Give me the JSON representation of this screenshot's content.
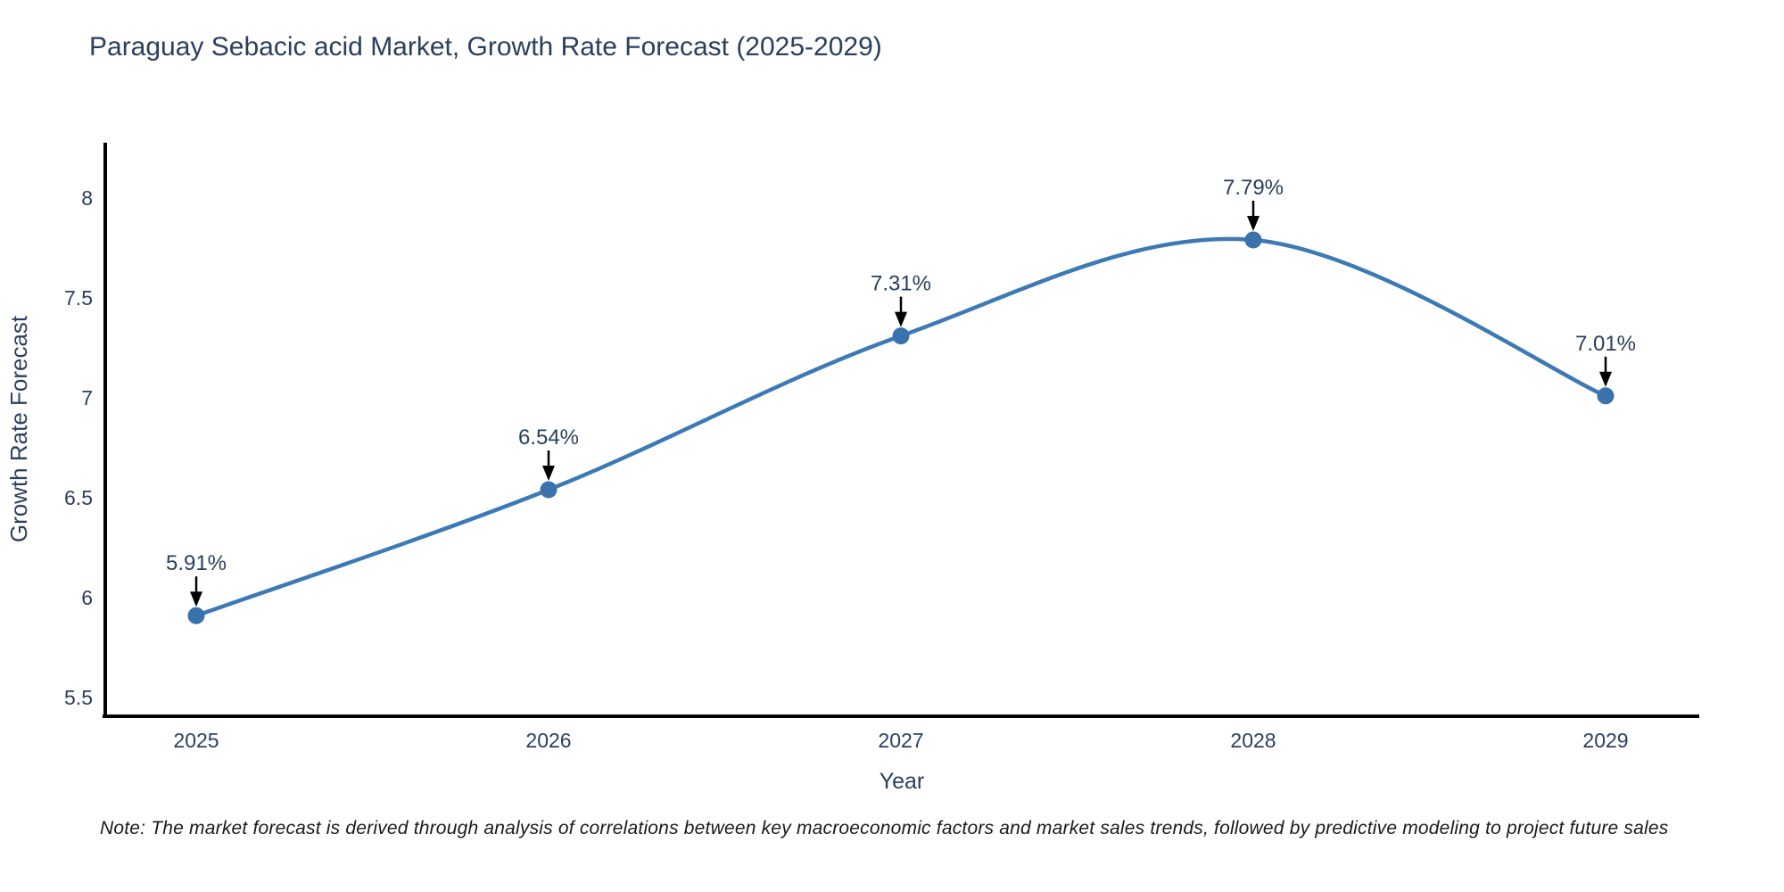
{
  "chart_data": {
    "type": "line",
    "title": "Paraguay Sebacic acid Market, Growth Rate Forecast (2025-2029)",
    "xlabel": "Year",
    "ylabel": "Growth Rate Forecast",
    "categories": [
      "2025",
      "2026",
      "2027",
      "2028",
      "2029"
    ],
    "values": [
      5.91,
      6.54,
      7.31,
      7.79,
      7.01
    ],
    "point_labels": [
      "5.91%",
      "6.54%",
      "7.31%",
      "7.79%",
      "7.01%"
    ],
    "yticks": [
      "5.5",
      "6",
      "6.5",
      "7",
      "7.5",
      "8"
    ],
    "ylim": [
      5.32,
      8.37
    ],
    "line_shape": "spline",
    "grid": false,
    "legend_position": "none",
    "marker_style": "circle",
    "annotation_arrows": true,
    "colors": {
      "line": "#3d79b5",
      "marker": "#3a72ab",
      "axis": "#000000",
      "text": "#2a3f5f",
      "annotation_text": "#2a3f5f",
      "arrow": "#000000",
      "note_text": "#1a1a1a",
      "background": "#ffffff"
    }
  },
  "note": "Note: The market forecast is derived through analysis of correlations between key macroeconomic factors and market sales trends, followed by predictive modeling to project future sales"
}
